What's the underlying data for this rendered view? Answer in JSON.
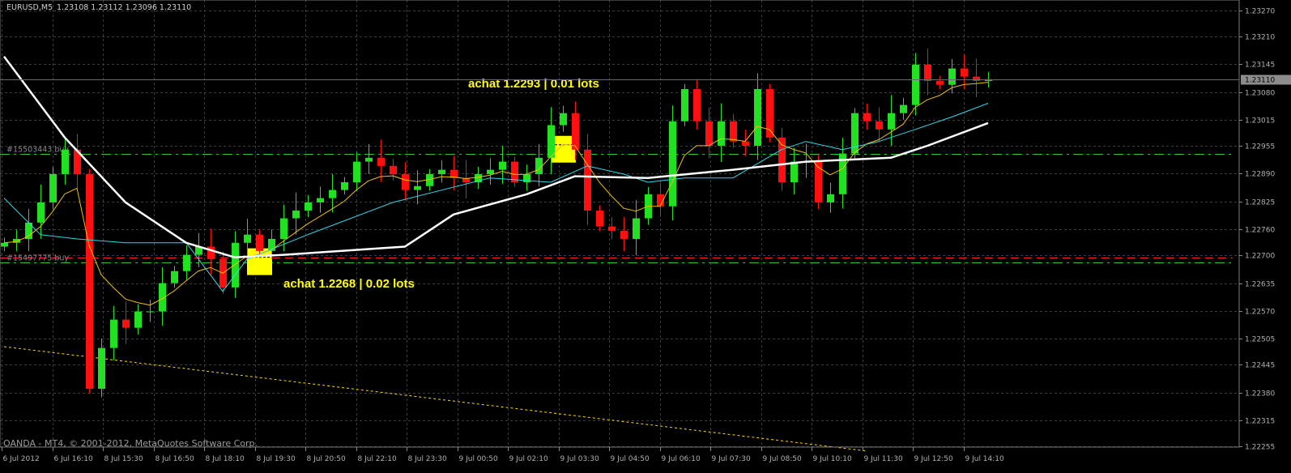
{
  "header": {
    "symbol": "EURUSD,M5",
    "ohlc": "1.23108 1.23112 1.23096 1.23110"
  },
  "footer": {
    "copyright": "OANDA - MT4, © 2001-2012, MetaQuotes Software Corp."
  },
  "colors": {
    "background": "#000000",
    "grid": "#3c3c3c",
    "bull": "#22e022",
    "bear": "#ff1010",
    "ma_fast": "#f0c000",
    "ma_mid": "#30d8e8",
    "ma_slow": "#ffffff",
    "order_line": "#2fc82f",
    "stop_line": "#ff2020",
    "annotation": "#ffff00",
    "trendline": "#ffd800"
  },
  "chart_data": {
    "type": "candlestick",
    "title": "",
    "ylim": [
      1.22255,
      1.2327
    ],
    "y_ticks": [
      "1.23270",
      "1.23210",
      "1.23145",
      "1.23080",
      "1.23015",
      "1.22955",
      "1.22890",
      "1.22825",
      "1.22760",
      "1.22700",
      "1.22635",
      "1.22570",
      "1.22505",
      "1.22445",
      "1.22380",
      "1.22315",
      "1.22255"
    ],
    "x_ticks": [
      "6 Jul 2012",
      "6 Jul 16:10",
      "8 Jul 15:30",
      "8 Jul 16:50",
      "8 Jul 18:10",
      "8 Jul 19:30",
      "8 Jul 20:50",
      "8 Jul 22:10",
      "8 Jul 23:30",
      "9 Jul 00:50",
      "9 Jul 02:10",
      "9 Jul 03:30",
      "9 Jul 04:50",
      "9 Jul 06:10",
      "9 Jul 07:30",
      "9 Jul 08:50",
      "9 Jul 10:10",
      "9 Jul 11:30",
      "9 Jul 12:50",
      "9 Jul 14:10"
    ],
    "grid": true,
    "current_price": "1.23110",
    "first_open": 1.2272,
    "close": [
      1.22729,
      1.22738,
      1.22776,
      1.22823,
      1.22889,
      1.22946,
      1.22889,
      1.22389,
      1.22484,
      1.2255,
      1.22531,
      1.22569,
      1.22569,
      1.22635,
      1.22663,
      1.22701,
      1.2272,
      1.22691,
      1.22625,
      1.22729,
      1.22748,
      1.2271,
      1.22738,
      1.22786,
      1.22804,
      1.22823,
      1.22833,
      1.22852,
      1.2287,
      1.22918,
      1.22927,
      1.22908,
      1.22889,
      1.22852,
      1.22861,
      1.22889,
      1.22899,
      1.2288,
      1.2287,
      1.22889,
      1.22899,
      1.22918,
      1.2287,
      1.22889,
      1.22927,
      1.23003,
      1.23031,
      1.22946,
      1.22804,
      1.22767,
      1.22757,
      1.22738,
      1.22786,
      1.22842,
      1.22814,
      1.23012,
      1.23087,
      1.23012,
      1.22955,
      1.23012,
      1.22965,
      1.22955,
      1.23087,
      1.22974,
      1.2287,
      1.22918,
      1.22918,
      1.22823,
      1.22842,
      1.22937,
      1.23031,
      1.23012,
      1.22993,
      1.23031,
      1.2305,
      1.23144,
      1.23106,
      1.23097,
      1.23135,
      1.23116,
      1.23106,
      1.2311
    ],
    "ma_mid": [
      [
        0,
        1.22833
      ],
      [
        3,
        1.22748
      ],
      [
        6,
        1.22738
      ],
      [
        10,
        1.22729
      ],
      [
        15,
        1.22729
      ],
      [
        18,
        1.22616
      ],
      [
        20,
        1.22691
      ],
      [
        25,
        1.22748
      ],
      [
        32,
        1.22823
      ],
      [
        40,
        1.2288
      ],
      [
        45,
        1.2287
      ],
      [
        48,
        1.22908
      ],
      [
        51,
        1.22889
      ],
      [
        53,
        1.2287
      ],
      [
        56,
        1.2288
      ],
      [
        60,
        1.2288
      ],
      [
        64,
        1.22946
      ],
      [
        66,
        1.22965
      ],
      [
        69,
        1.22946
      ],
      [
        72,
        1.22965
      ],
      [
        75,
        1.22993
      ],
      [
        78,
        1.23022
      ],
      [
        81,
        1.23054
      ]
    ],
    "ma_slow": [
      [
        0,
        1.23163
      ],
      [
        5,
        1.22974
      ],
      [
        10,
        1.22823
      ],
      [
        15,
        1.22729
      ],
      [
        19,
        1.22695
      ],
      [
        23,
        1.22701
      ],
      [
        33,
        1.2272
      ],
      [
        37,
        1.22795
      ],
      [
        43,
        1.22842
      ],
      [
        47,
        1.22884
      ],
      [
        53,
        1.2288
      ],
      [
        60,
        1.22899
      ],
      [
        66,
        1.22918
      ],
      [
        73,
        1.22927
      ],
      [
        76,
        1.22955
      ],
      [
        81,
        1.23008
      ]
    ],
    "trendline": [
      [
        0,
        1.22487
      ],
      [
        71,
        1.22244
      ]
    ],
    "horizontal_lines": [
      {
        "price": 1.22936,
        "style": "dash-dot",
        "color": "#2fc82f",
        "label": "#15503443 buy"
      },
      {
        "price": 1.22695,
        "style": "dash",
        "color": "#ff2020",
        "label": ""
      },
      {
        "price": 1.22684,
        "style": "dash-dot",
        "color": "#2fc82f",
        "label": "#15497775 buy"
      }
    ],
    "annotations": [
      {
        "text": "achat 1.2293 | 0.01 lots",
        "bar": 46,
        "price": 1.22946
      },
      {
        "text": "achat 1.2268 | 0.02 lots",
        "bar": 21,
        "price": 1.22684
      }
    ]
  }
}
